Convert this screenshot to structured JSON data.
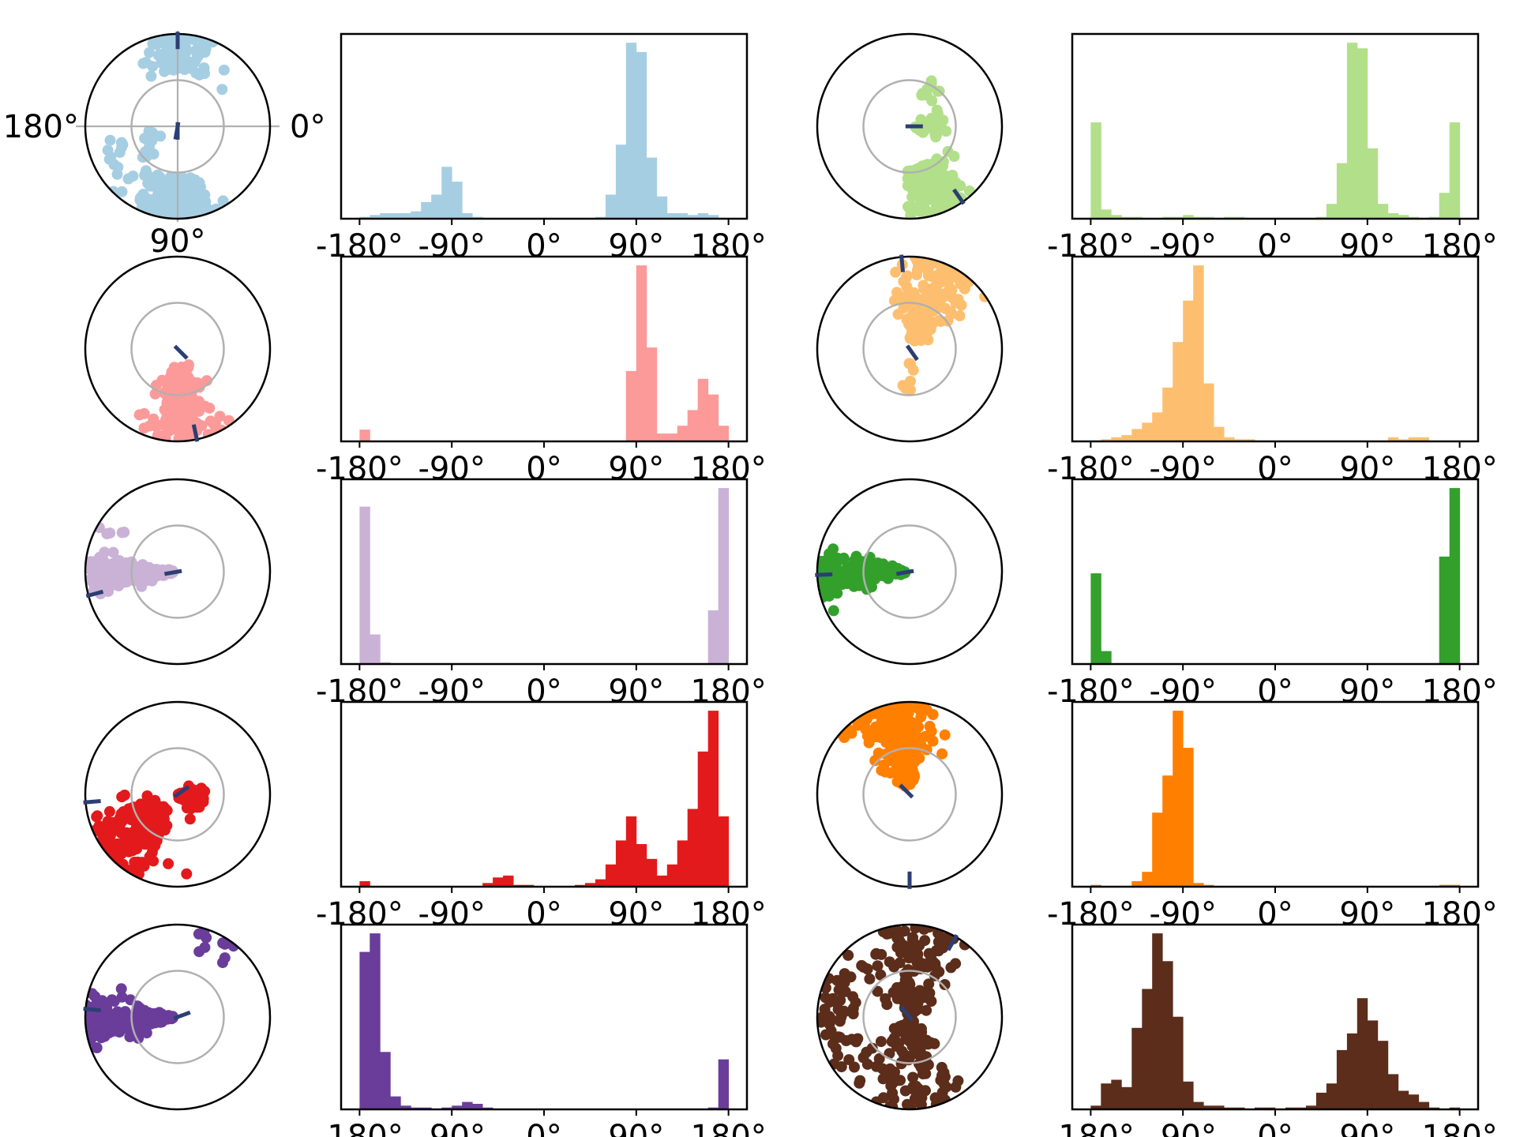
{
  "figure": {
    "compass_labels": {
      "left": "180°",
      "right": "0°",
      "bottom": "90°"
    }
  },
  "chart_data": [
    {
      "type": "scatter",
      "subplot": "polar",
      "color": "#a6cee3",
      "axes_lines": true,
      "mean_marks_deg": [
        -90,
        100,
        90
      ],
      "clusters": [
        {
          "center_deg": 95,
          "r_range": [
            0.55,
            1.0
          ],
          "spread_deg": 25,
          "n": 180
        },
        {
          "center_deg": -90,
          "r_range": [
            0.6,
            1.0
          ],
          "spread_deg": 22,
          "n": 90
        },
        {
          "center_deg": 160,
          "r_range": [
            0.2,
            0.85
          ],
          "spread_deg": 20,
          "n": 25
        }
      ]
    },
    {
      "type": "bar",
      "subplot": "histogram",
      "color": "#a6cee3",
      "xlim": [
        -180,
        180
      ],
      "xticklabels": [
        "-180°",
        "-90°",
        "0°",
        "90°",
        "180°"
      ],
      "x": [
        -180,
        -170,
        -160,
        -150,
        -140,
        -130,
        -120,
        -110,
        -100,
        -90,
        -80,
        -70,
        -60,
        -50,
        -40,
        -30,
        -20,
        -10,
        0,
        10,
        20,
        30,
        40,
        50,
        60,
        70,
        80,
        90,
        100,
        110,
        120,
        130,
        140,
        150,
        160,
        170
      ],
      "values": [
        1,
        2,
        3,
        3,
        3,
        4,
        9,
        13,
        28,
        20,
        3,
        1,
        0,
        0,
        0,
        0,
        0,
        0,
        0,
        0,
        0,
        0,
        0,
        1,
        13,
        40,
        95,
        90,
        33,
        12,
        3,
        3,
        2,
        3,
        2,
        0
      ]
    },
    {
      "type": "scatter",
      "subplot": "polar",
      "color": "#b2df8a",
      "axes_lines": false,
      "mean_marks_deg": [
        55,
        0
      ],
      "clusters": [
        {
          "center_deg": 70,
          "r_range": [
            0.45,
            1.0
          ],
          "spread_deg": 18,
          "n": 160
        },
        {
          "center_deg": 0,
          "r_range": [
            0.05,
            0.4
          ],
          "spread_deg": 25,
          "n": 30
        },
        {
          "center_deg": -60,
          "r_range": [
            0.3,
            0.55
          ],
          "spread_deg": 15,
          "n": 12
        }
      ]
    },
    {
      "type": "bar",
      "subplot": "histogram",
      "color": "#b2df8a",
      "xlim": [
        -180,
        180
      ],
      "xticklabels": [
        "-180°",
        "-90°",
        "0°",
        "90°",
        "180°"
      ],
      "x": [
        -180,
        -170,
        -160,
        -150,
        -140,
        -130,
        -120,
        -110,
        -100,
        -90,
        -80,
        -70,
        -60,
        -50,
        -40,
        -30,
        -20,
        -10,
        0,
        10,
        20,
        30,
        40,
        50,
        60,
        70,
        80,
        90,
        100,
        110,
        120,
        130,
        140,
        150,
        160,
        170
      ],
      "values": [
        52,
        5,
        2,
        1,
        1,
        0,
        0,
        1,
        1,
        2,
        1,
        1,
        0,
        1,
        1,
        0,
        0,
        0,
        0,
        0,
        0,
        0,
        1,
        8,
        30,
        95,
        92,
        38,
        8,
        3,
        2,
        1,
        0,
        1,
        14,
        52
      ]
    },
    {
      "type": "scatter",
      "subplot": "polar",
      "color": "#fb9a99",
      "axes_lines": false,
      "mean_marks_deg": [
        78,
        45
      ],
      "clusters": [
        {
          "center_deg": 85,
          "r_range": [
            0.2,
            1.0
          ],
          "spread_deg": 22,
          "n": 220
        }
      ]
    },
    {
      "type": "bar",
      "subplot": "histogram",
      "color": "#fb9a99",
      "xlim": [
        -180,
        180
      ],
      "xticklabels": [
        "-180°",
        "-90°",
        "0°",
        "90°",
        "180°"
      ],
      "x": [
        -180,
        -170,
        -160,
        -150,
        -140,
        -130,
        -120,
        -110,
        -100,
        -90,
        -80,
        -70,
        -60,
        -50,
        -40,
        -30,
        -20,
        -10,
        0,
        10,
        20,
        30,
        40,
        50,
        60,
        70,
        80,
        90,
        100,
        110,
        120,
        130,
        140,
        150,
        160,
        170
      ],
      "values": [
        6,
        0,
        0,
        0,
        0,
        0,
        0,
        0,
        0,
        0,
        0,
        0,
        0,
        0,
        0,
        0,
        0,
        0,
        0,
        0,
        0,
        0,
        0,
        0,
        0,
        0,
        36,
        90,
        48,
        4,
        4,
        8,
        16,
        32,
        24,
        8
      ]
    },
    {
      "type": "scatter",
      "subplot": "polar",
      "color": "#fdbf6f",
      "axes_lines": false,
      "mean_marks_deg": [
        -95,
        55
      ],
      "clusters": [
        {
          "center_deg": -70,
          "r_range": [
            0.1,
            1.0
          ],
          "spread_deg": 30,
          "n": 180
        },
        {
          "center_deg": 85,
          "r_range": [
            0.15,
            0.45
          ],
          "spread_deg": 15,
          "n": 8
        }
      ]
    },
    {
      "type": "bar",
      "subplot": "histogram",
      "color": "#fdbf6f",
      "xlim": [
        -180,
        180
      ],
      "xticklabels": [
        "-180°",
        "-90°",
        "0°",
        "90°",
        "180°"
      ],
      "x": [
        -180,
        -170,
        -160,
        -150,
        -140,
        -130,
        -120,
        -110,
        -100,
        -90,
        -80,
        -70,
        -60,
        -50,
        -40,
        -30,
        -20,
        -10,
        0,
        10,
        20,
        30,
        40,
        50,
        60,
        70,
        80,
        90,
        100,
        110,
        120,
        130,
        140,
        150,
        160,
        170
      ],
      "values": [
        0,
        1,
        2,
        3,
        6,
        9,
        14,
        26,
        48,
        68,
        85,
        28,
        7,
        2,
        1,
        1,
        0,
        0,
        0,
        0,
        0,
        0,
        0,
        0,
        0,
        0,
        0,
        0,
        0,
        2,
        1,
        2,
        2,
        0,
        0,
        0
      ]
    },
    {
      "type": "scatter",
      "subplot": "polar",
      "color": "#cab2d6",
      "axes_lines": false,
      "mean_marks_deg": [
        165,
        170
      ],
      "clusters": [
        {
          "center_deg": 178,
          "r_range": [
            0.05,
            0.95
          ],
          "spread_deg": 12,
          "n": 200
        },
        {
          "center_deg": -150,
          "r_range": [
            0.6,
            1.0
          ],
          "spread_deg": 10,
          "n": 6
        }
      ]
    },
    {
      "type": "bar",
      "subplot": "histogram",
      "color": "#cab2d6",
      "xlim": [
        -180,
        180
      ],
      "xticklabels": [
        "-180°",
        "-90°",
        "0°",
        "90°",
        "180°"
      ],
      "x": [
        -180,
        -170,
        -160,
        -150,
        -140,
        -130,
        -120,
        -110,
        -100,
        -90,
        -80,
        -70,
        -60,
        -50,
        -40,
        -30,
        -20,
        -10,
        0,
        10,
        20,
        30,
        40,
        50,
        60,
        70,
        80,
        90,
        100,
        110,
        120,
        130,
        140,
        150,
        160,
        170
      ],
      "values": [
        85,
        16,
        1,
        0,
        0,
        0,
        0,
        0,
        0,
        0,
        0,
        0,
        0,
        0,
        0,
        0,
        0,
        0,
        0,
        0,
        0,
        0,
        0,
        0,
        0,
        0,
        0,
        0,
        0,
        0,
        0,
        0,
        0,
        0,
        29,
        95
      ]
    },
    {
      "type": "scatter",
      "subplot": "polar",
      "color": "#33a02c",
      "axes_lines": false,
      "mean_marks_deg": [
        178,
        170
      ],
      "clusters": [
        {
          "center_deg": 178,
          "r_range": [
            0.05,
            1.0
          ],
          "spread_deg": 14,
          "n": 200
        }
      ]
    },
    {
      "type": "bar",
      "subplot": "histogram",
      "color": "#33a02c",
      "xlim": [
        -180,
        180
      ],
      "xticklabels": [
        "-180°",
        "-90°",
        "0°",
        "90°",
        "180°"
      ],
      "x": [
        -180,
        -170,
        -160,
        -150,
        -140,
        -130,
        -120,
        -110,
        -100,
        -90,
        -80,
        -70,
        -60,
        -50,
        -40,
        -30,
        -20,
        -10,
        0,
        10,
        20,
        30,
        40,
        50,
        60,
        70,
        80,
        90,
        100,
        110,
        120,
        130,
        140,
        150,
        160,
        170
      ],
      "values": [
        49,
        7,
        0,
        0,
        0,
        0,
        0,
        0,
        0,
        0,
        0,
        0,
        0,
        0,
        0,
        0,
        0,
        0,
        0,
        0,
        0,
        0,
        0,
        0,
        0,
        0,
        0,
        0,
        0,
        0,
        0,
        0,
        0,
        0,
        58,
        95
      ]
    },
    {
      "type": "scatter",
      "subplot": "polar",
      "color": "#e31a1c",
      "axes_lines": false,
      "mean_marks_deg": [
        175,
        -35
      ],
      "clusters": [
        {
          "center_deg": 140,
          "r_range": [
            0.2,
            1.0
          ],
          "spread_deg": 25,
          "n": 180
        },
        {
          "center_deg": 15,
          "r_range": [
            0.0,
            0.3
          ],
          "spread_deg": 40,
          "n": 60
        }
      ]
    },
    {
      "type": "bar",
      "subplot": "histogram",
      "color": "#e31a1c",
      "xlim": [
        -180,
        180
      ],
      "xticklabels": [
        "-180°",
        "-90°",
        "0°",
        "90°",
        "180°"
      ],
      "x": [
        -180,
        -170,
        -160,
        -150,
        -140,
        -130,
        -120,
        -110,
        -100,
        -90,
        -80,
        -70,
        -60,
        -50,
        -40,
        -30,
        -20,
        -10,
        0,
        10,
        20,
        30,
        40,
        50,
        60,
        70,
        80,
        90,
        100,
        110,
        120,
        130,
        140,
        150,
        160,
        170
      ],
      "values": [
        3,
        0,
        0,
        0,
        0,
        0,
        0,
        0,
        0,
        0,
        0,
        0,
        2,
        5,
        6,
        1,
        1,
        0,
        0,
        0,
        0,
        1,
        2,
        4,
        12,
        25,
        38,
        23,
        15,
        6,
        12,
        25,
        42,
        73,
        95,
        38
      ]
    },
    {
      "type": "scatter",
      "subplot": "polar",
      "color": "#ff7f00",
      "axes_lines": false,
      "mean_marks_deg": [
        90,
        -135
      ],
      "clusters": [
        {
          "center_deg": -100,
          "r_range": [
            0.1,
            1.0
          ],
          "spread_deg": 25,
          "n": 200
        }
      ]
    },
    {
      "type": "bar",
      "subplot": "histogram",
      "color": "#ff7f00",
      "xlim": [
        -180,
        180
      ],
      "xticklabels": [
        "-180°",
        "-90°",
        "0°",
        "90°",
        "180°"
      ],
      "x": [
        -180,
        -170,
        -160,
        -150,
        -140,
        -130,
        -120,
        -110,
        -100,
        -90,
        -80,
        -70,
        -60,
        -50,
        -40,
        -30,
        -20,
        -10,
        0,
        10,
        20,
        30,
        40,
        50,
        60,
        70,
        80,
        90,
        100,
        110,
        120,
        130,
        140,
        150,
        160,
        170
      ],
      "values": [
        1,
        0,
        0,
        0,
        3,
        8,
        40,
        60,
        95,
        75,
        2,
        1,
        0,
        0,
        0,
        0,
        0,
        0,
        0,
        0,
        0,
        0,
        0,
        0,
        0,
        0,
        0,
        0,
        0,
        0,
        0,
        0,
        0,
        0,
        1,
        1
      ]
    },
    {
      "type": "scatter",
      "subplot": "polar",
      "color": "#6a3d9a",
      "axes_lines": false,
      "mean_marks_deg": [
        -175,
        -20
      ],
      "clusters": [
        {
          "center_deg": 178,
          "r_range": [
            0.05,
            1.0
          ],
          "spread_deg": 14,
          "n": 180
        },
        {
          "center_deg": -60,
          "r_range": [
            0.7,
            1.0
          ],
          "spread_deg": 18,
          "n": 10
        }
      ]
    },
    {
      "type": "bar",
      "subplot": "histogram",
      "color": "#6a3d9a",
      "xlim": [
        -180,
        180
      ],
      "xticklabels": [
        "-180°",
        "-90°",
        "0°",
        "90°",
        "180°"
      ],
      "x": [
        -180,
        -170,
        -160,
        -150,
        -140,
        -130,
        -120,
        -110,
        -100,
        -90,
        -80,
        -70,
        -60,
        -50,
        -40,
        -30,
        -20,
        -10,
        0,
        10,
        20,
        30,
        40,
        50,
        60,
        70,
        80,
        90,
        100,
        110,
        120,
        130,
        140,
        150,
        160,
        170
      ],
      "values": [
        85,
        95,
        31,
        7,
        2,
        1,
        1,
        0,
        1,
        2,
        4,
        3,
        1,
        0,
        0,
        0,
        0,
        0,
        0,
        0,
        0,
        0,
        0,
        0,
        0,
        0,
        0,
        0,
        0,
        0,
        0,
        0,
        0,
        0,
        1,
        27
      ]
    },
    {
      "type": "scatter",
      "subplot": "polar",
      "color": "#5b2d1a",
      "axes_lines": false,
      "mean_marks_deg": [
        -60,
        -130
      ],
      "clusters": [
        {
          "center_deg": -90,
          "r_range": [
            0.0,
            1.0
          ],
          "spread_deg": 40,
          "n": 140
        },
        {
          "center_deg": 90,
          "r_range": [
            0.0,
            1.0
          ],
          "spread_deg": 40,
          "n": 120
        },
        {
          "center_deg": 175,
          "r_range": [
            0.6,
            1.0
          ],
          "spread_deg": 30,
          "n": 50
        }
      ]
    },
    {
      "type": "bar",
      "subplot": "histogram",
      "color": "#5b2d1a",
      "xlim": [
        -180,
        180
      ],
      "xticklabels": [
        "-180°",
        "-90°",
        "0°",
        "90°",
        "180°"
      ],
      "x": [
        -180,
        -170,
        -160,
        -150,
        -140,
        -130,
        -120,
        -110,
        -100,
        -90,
        -80,
        -70,
        -60,
        -50,
        -40,
        -30,
        -20,
        -10,
        0,
        10,
        20,
        30,
        40,
        50,
        60,
        70,
        80,
        90,
        100,
        110,
        120,
        130,
        140,
        150,
        160,
        170
      ],
      "values": [
        2,
        14,
        16,
        12,
        44,
        65,
        95,
        80,
        50,
        15,
        4,
        2,
        2,
        1,
        1,
        0,
        1,
        1,
        0,
        1,
        1,
        2,
        9,
        14,
        32,
        41,
        60,
        48,
        37,
        19,
        10,
        8,
        4,
        1,
        0,
        1
      ]
    }
  ]
}
